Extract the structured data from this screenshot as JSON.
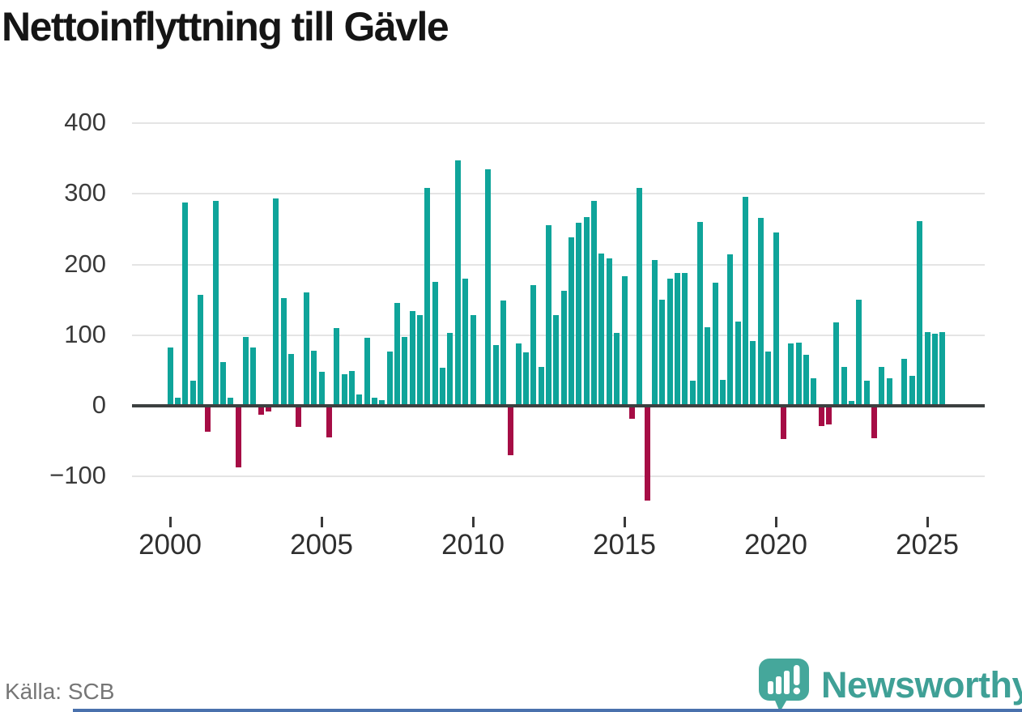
{
  "chart_data": {
    "type": "bar",
    "title": "Nettoinflyttning till Gävle",
    "frequency": "quarterly",
    "start_year": 2000,
    "start_quarter": 1,
    "values": [
      83,
      12,
      288,
      35,
      157,
      -34,
      290,
      62,
      12,
      -85,
      98,
      83,
      -10,
      -6,
      294,
      152,
      73,
      -27,
      160,
      78,
      48,
      -42,
      110,
      45,
      49,
      16,
      96,
      12,
      8,
      77,
      146,
      98,
      134,
      129,
      308,
      175,
      54,
      103,
      348,
      180,
      129,
      0,
      335,
      86,
      149,
      -68,
      88,
      76,
      171,
      55,
      256,
      128,
      163,
      239,
      259,
      267,
      290,
      216,
      209,
      103,
      184,
      -16,
      308,
      -132,
      206,
      150,
      180,
      188,
      188,
      35,
      260,
      111,
      174,
      37,
      215,
      119,
      296,
      92,
      266,
      77,
      245,
      -45,
      88,
      90,
      72,
      39,
      -26,
      -24,
      118,
      55,
      7,
      150,
      36,
      -44,
      55,
      39,
      0,
      67,
      43,
      262,
      104,
      102,
      104
    ],
    "x_tick_labels": [
      "2000",
      "2005",
      "2010",
      "2015",
      "2020",
      "2025"
    ],
    "y_ticks": [
      {
        "value": 400,
        "label": "400"
      },
      {
        "value": 300,
        "label": "300"
      },
      {
        "value": 200,
        "label": "200"
      },
      {
        "value": 100,
        "label": "100"
      },
      {
        "value": 0,
        "label": "0"
      },
      {
        "value": -100,
        "label": "−100"
      }
    ],
    "ylim": [
      -150,
      420
    ],
    "grid": true,
    "legend": "none",
    "colors": {
      "positive": "#0FA49A",
      "negative": "#A60D45"
    }
  },
  "source": {
    "label": "Källa: SCB"
  },
  "branding": {
    "logo_text": "Newsworthy",
    "logo_color": "#45A79B",
    "wordmark_color": "#3FA096",
    "accent_line_color": "#4A71AD"
  }
}
